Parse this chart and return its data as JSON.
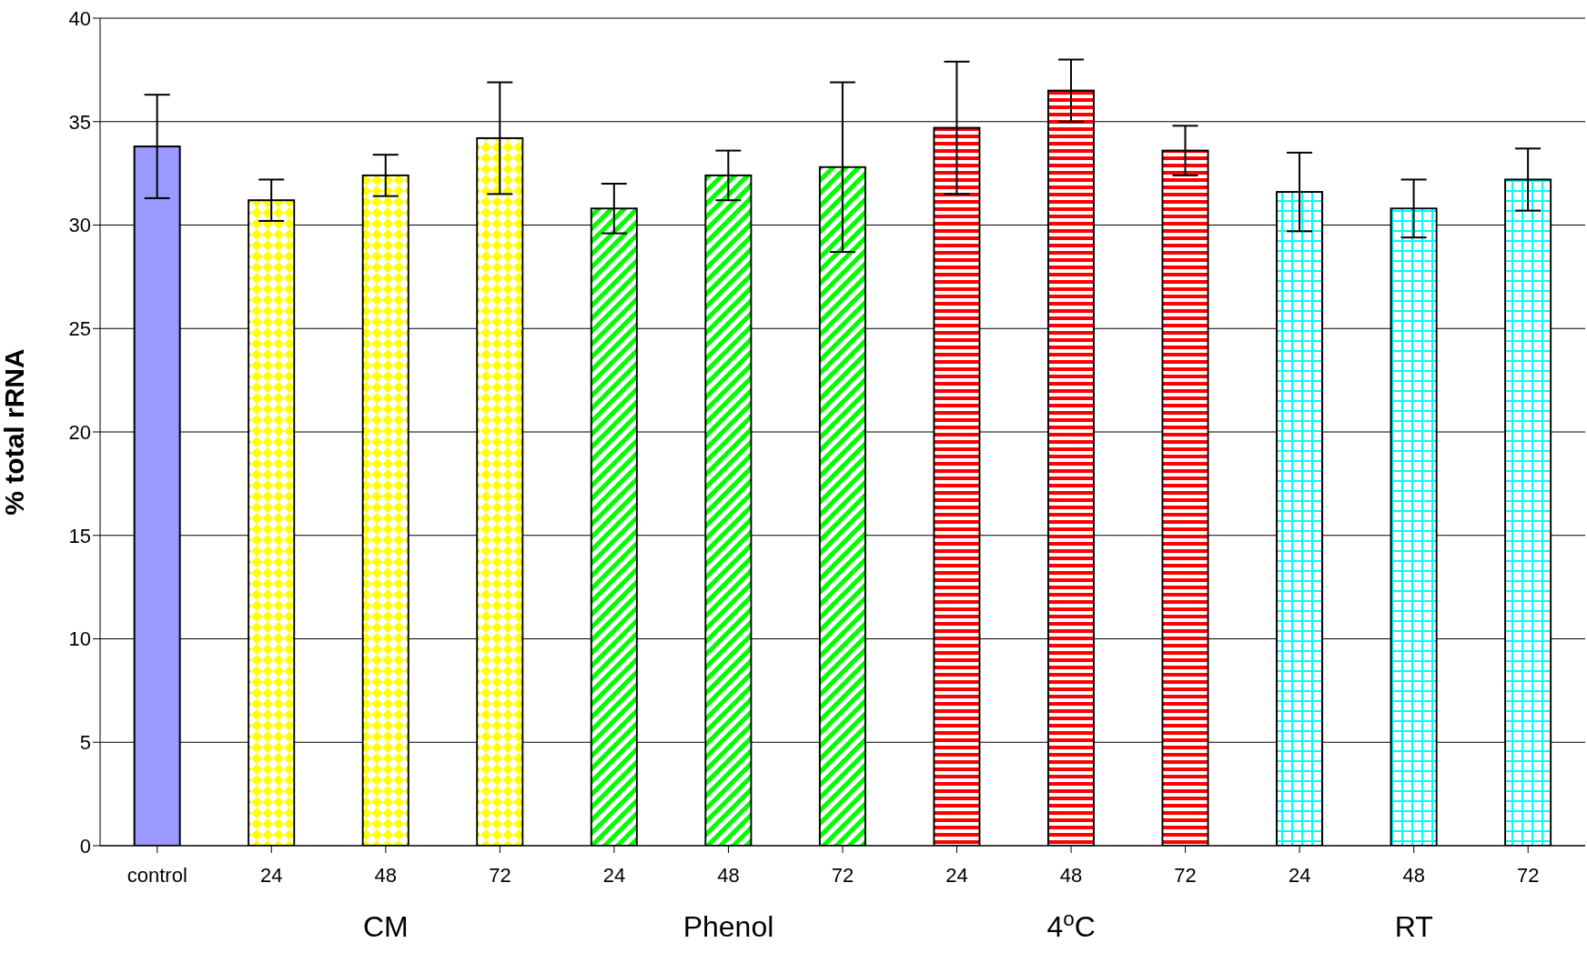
{
  "chart_data": {
    "type": "bar",
    "ylabel": "% total rRNA",
    "categories": [
      "control",
      "24",
      "48",
      "72",
      "24",
      "48",
      "72",
      "24",
      "48",
      "72",
      "24",
      "48",
      "72"
    ],
    "values": [
      33.8,
      31.2,
      32.4,
      34.2,
      30.8,
      32.4,
      32.8,
      34.7,
      36.5,
      33.6,
      31.6,
      30.8,
      32.2
    ],
    "errors": [
      2.5,
      1.0,
      1.0,
      2.7,
      1.2,
      1.2,
      4.1,
      3.2,
      1.5,
      1.2,
      1.9,
      1.4,
      1.5
    ],
    "colors": [
      "#9999ff",
      "#ffff00",
      "#ffff00",
      "#ffff00",
      "#00ff00",
      "#00ff00",
      "#00ff00",
      "#ff0000",
      "#ff0000",
      "#ff0000",
      "#00ffff",
      "#00ffff",
      "#00ffff"
    ],
    "annotations": [
      "CM",
      "Phenol",
      "4$^{o}$C",
      "RT"
    ],
    "ylim": [
      0,
      40
    ],
    "yticks": [
      0,
      5,
      10,
      15,
      20,
      25,
      30,
      35,
      40
    ],
    "grid": "y"
  }
}
